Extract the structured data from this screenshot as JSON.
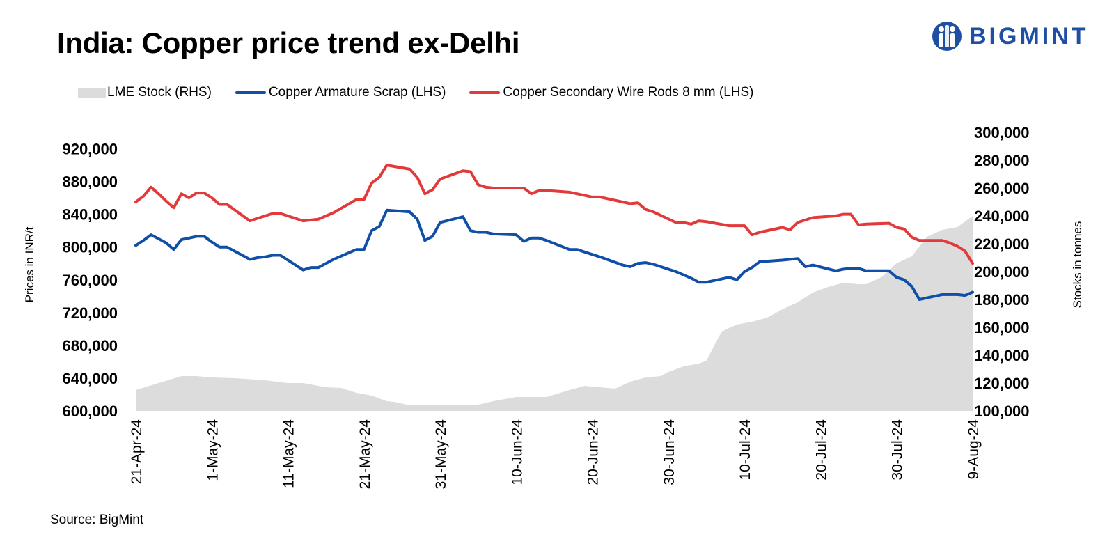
{
  "header": {
    "title": "India: Copper price trend ex-Delhi",
    "logo_text": "BIGMINT"
  },
  "source": "Source: BigMint",
  "colors": {
    "lme_area": "#dcdcdc",
    "armature": "#0f4fa8",
    "wire_rods": "#e23a3a",
    "logo": "#1f4fa3"
  },
  "chart_data": {
    "type": "line",
    "title": "India: Copper price trend ex-Delhi",
    "ylabel": "Prices in INR/t",
    "y2label": "Stocks in tonnes",
    "ylim": [
      600000,
      940000
    ],
    "y2lim": [
      100000,
      300000
    ],
    "yticks": [
      "600,000",
      "640,000",
      "680,000",
      "720,000",
      "760,000",
      "800,000",
      "840,000",
      "880,000",
      "920,000"
    ],
    "yticks_values": [
      600000,
      640000,
      680000,
      720000,
      760000,
      800000,
      840000,
      880000,
      920000
    ],
    "y2ticks": [
      "100,000",
      "120,000",
      "140,000",
      "160,000",
      "180,000",
      "200,000",
      "220,000",
      "240,000",
      "260,000",
      "280,000",
      "300,000"
    ],
    "y2ticks_values": [
      100000,
      120000,
      140000,
      160000,
      180000,
      200000,
      220000,
      240000,
      260000,
      280000,
      300000
    ],
    "xticks": [
      "21-Apr-24",
      "1-May-24",
      "11-May-24",
      "21-May-24",
      "31-May-24",
      "10-Jun-24",
      "20-Jun-24",
      "30-Jun-24",
      "10-Jul-24",
      "20-Jul-24",
      "30-Jul-24",
      "9-Aug-24"
    ],
    "xlim": [
      "2024-04-21",
      "2024-08-09"
    ],
    "legend_position": "top",
    "grid": false,
    "series": [
      {
        "name": "LME Stock (RHS)",
        "kind": "area",
        "axis": "right",
        "x": [
          "2024-04-21",
          "2024-04-24",
          "2024-04-27",
          "2024-04-29",
          "2024-05-01",
          "2024-05-04",
          "2024-05-08",
          "2024-05-11",
          "2024-05-13",
          "2024-05-16",
          "2024-05-18",
          "2024-05-20",
          "2024-05-22",
          "2024-05-24",
          "2024-05-25",
          "2024-05-27",
          "2024-05-29",
          "2024-05-31",
          "2024-06-03",
          "2024-06-05",
          "2024-06-07",
          "2024-06-10",
          "2024-06-12",
          "2024-06-14",
          "2024-06-17",
          "2024-06-19",
          "2024-06-21",
          "2024-06-23",
          "2024-06-25",
          "2024-06-27",
          "2024-06-29",
          "2024-06-30",
          "2024-07-02",
          "2024-07-03",
          "2024-07-04",
          "2024-07-05",
          "2024-07-07",
          "2024-07-09",
          "2024-07-11",
          "2024-07-13",
          "2024-07-15",
          "2024-07-17",
          "2024-07-19",
          "2024-07-21",
          "2024-07-23",
          "2024-07-25",
          "2024-07-26",
          "2024-07-28",
          "2024-07-30",
          "2024-08-01",
          "2024-08-03",
          "2024-08-05",
          "2024-08-07",
          "2024-08-09"
        ],
        "values": [
          115000,
          120000,
          125000,
          125000,
          124000,
          123500,
          122000,
          120000,
          120000,
          117000,
          116500,
          113000,
          111000,
          107000,
          106500,
          104000,
          104000,
          104500,
          104500,
          104500,
          107000,
          110000,
          110000,
          110000,
          115000,
          118000,
          117000,
          116000,
          121000,
          124000,
          125000,
          128000,
          132000,
          133000,
          134000,
          136000,
          157000,
          162000,
          164000,
          167000,
          173000,
          178000,
          185000,
          189000,
          192000,
          191000,
          191000,
          196000,
          206000,
          211000,
          225000,
          230000,
          232000,
          240000
        ]
      },
      {
        "name": "Copper Armature Scrap (LHS)",
        "kind": "line",
        "axis": "left",
        "x": [
          "2024-04-21",
          "2024-04-22",
          "2024-04-23",
          "2024-04-24",
          "2024-04-25",
          "2024-04-26",
          "2024-04-27",
          "2024-04-28",
          "2024-04-29",
          "2024-04-30",
          "2024-05-01",
          "2024-05-02",
          "2024-05-03",
          "2024-05-06",
          "2024-05-07",
          "2024-05-08",
          "2024-05-09",
          "2024-05-10",
          "2024-05-13",
          "2024-05-14",
          "2024-05-15",
          "2024-05-16",
          "2024-05-17",
          "2024-05-20",
          "2024-05-21",
          "2024-05-22",
          "2024-05-23",
          "2024-05-24",
          "2024-05-27",
          "2024-05-28",
          "2024-05-29",
          "2024-05-30",
          "2024-05-31",
          "2024-06-03",
          "2024-06-04",
          "2024-06-05",
          "2024-06-06",
          "2024-06-07",
          "2024-06-10",
          "2024-06-11",
          "2024-06-12",
          "2024-06-13",
          "2024-06-14",
          "2024-06-17",
          "2024-06-18",
          "2024-06-19",
          "2024-06-20",
          "2024-06-21",
          "2024-06-24",
          "2024-06-25",
          "2024-06-26",
          "2024-06-27",
          "2024-06-28",
          "2024-07-01",
          "2024-07-02",
          "2024-07-03",
          "2024-07-04",
          "2024-07-05",
          "2024-07-08",
          "2024-07-09",
          "2024-07-10",
          "2024-07-11",
          "2024-07-12",
          "2024-07-15",
          "2024-07-16",
          "2024-07-17",
          "2024-07-18",
          "2024-07-19",
          "2024-07-22",
          "2024-07-23",
          "2024-07-24",
          "2024-07-25",
          "2024-07-26",
          "2024-07-29",
          "2024-07-30",
          "2024-07-31",
          "2024-08-01",
          "2024-08-02",
          "2024-08-05",
          "2024-08-06",
          "2024-08-07",
          "2024-08-08",
          "2024-08-09"
        ],
        "values": [
          802000,
          808000,
          815000,
          810000,
          805000,
          797000,
          809000,
          811000,
          813000,
          813000,
          806000,
          800000,
          800000,
          785000,
          787000,
          788000,
          790000,
          790000,
          772000,
          775000,
          775000,
          780000,
          785000,
          797000,
          797000,
          820000,
          825000,
          845000,
          843000,
          834000,
          808000,
          813000,
          830000,
          837000,
          820000,
          818000,
          818000,
          816000,
          815000,
          807000,
          811000,
          811000,
          808000,
          797000,
          797000,
          794000,
          791000,
          788000,
          778000,
          776000,
          780000,
          781000,
          779000,
          770000,
          766000,
          762000,
          757000,
          757000,
          763000,
          760000,
          770000,
          775000,
          782000,
          784000,
          785000,
          786000,
          776000,
          778000,
          771000,
          773000,
          774000,
          774000,
          771000,
          771000,
          763000,
          760000,
          752000,
          736000,
          742000,
          742000,
          742000,
          741000,
          745000
        ]
      },
      {
        "name": "Copper Secondary Wire Rods 8 mm (LHS)",
        "kind": "line",
        "axis": "left",
        "x": [
          "2024-04-21",
          "2024-04-22",
          "2024-04-23",
          "2024-04-24",
          "2024-04-25",
          "2024-04-26",
          "2024-04-27",
          "2024-04-28",
          "2024-04-29",
          "2024-04-30",
          "2024-05-01",
          "2024-05-02",
          "2024-05-03",
          "2024-05-06",
          "2024-05-07",
          "2024-05-08",
          "2024-05-09",
          "2024-05-10",
          "2024-05-13",
          "2024-05-14",
          "2024-05-15",
          "2024-05-16",
          "2024-05-17",
          "2024-05-20",
          "2024-05-21",
          "2024-05-22",
          "2024-05-23",
          "2024-05-24",
          "2024-05-27",
          "2024-05-28",
          "2024-05-29",
          "2024-05-30",
          "2024-05-31",
          "2024-06-03",
          "2024-06-04",
          "2024-06-05",
          "2024-06-06",
          "2024-06-07",
          "2024-06-10",
          "2024-06-11",
          "2024-06-12",
          "2024-06-13",
          "2024-06-14",
          "2024-06-17",
          "2024-06-18",
          "2024-06-19",
          "2024-06-20",
          "2024-06-21",
          "2024-06-24",
          "2024-06-25",
          "2024-06-26",
          "2024-06-27",
          "2024-06-28",
          "2024-07-01",
          "2024-07-02",
          "2024-07-03",
          "2024-07-04",
          "2024-07-05",
          "2024-07-08",
          "2024-07-09",
          "2024-07-10",
          "2024-07-11",
          "2024-07-12",
          "2024-07-15",
          "2024-07-16",
          "2024-07-17",
          "2024-07-18",
          "2024-07-19",
          "2024-07-22",
          "2024-07-23",
          "2024-07-24",
          "2024-07-25",
          "2024-07-26",
          "2024-07-29",
          "2024-07-30",
          "2024-07-31",
          "2024-08-01",
          "2024-08-02",
          "2024-08-05",
          "2024-08-06",
          "2024-08-07",
          "2024-08-08",
          "2024-08-09"
        ],
        "values": [
          855000,
          862000,
          873000,
          865000,
          856000,
          848000,
          865000,
          860000,
          866000,
          866000,
          860000,
          852000,
          852000,
          832000,
          835000,
          838000,
          841000,
          841000,
          832000,
          833000,
          834000,
          838000,
          842000,
          858000,
          858000,
          878000,
          885000,
          900000,
          895000,
          885000,
          865000,
          870000,
          883000,
          893000,
          892000,
          876000,
          873000,
          872000,
          872000,
          872000,
          865000,
          869000,
          869000,
          867000,
          865000,
          863000,
          861000,
          861000,
          855000,
          853000,
          854000,
          846000,
          843000,
          830000,
          830000,
          828000,
          832000,
          831000,
          826000,
          826000,
          826000,
          815000,
          818000,
          824000,
          821000,
          830000,
          833000,
          836000,
          838000,
          840000,
          840000,
          827000,
          828000,
          829000,
          824000,
          822000,
          812000,
          808000,
          808000,
          805000,
          801000,
          795000,
          780000
        ]
      }
    ]
  }
}
